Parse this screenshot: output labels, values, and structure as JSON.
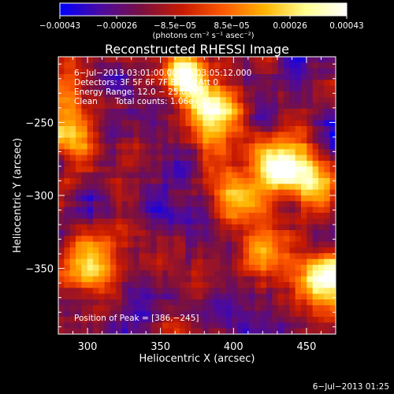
{
  "chart_data": {
    "type": "heatmap",
    "title": "Reconstructed RHESSI Image",
    "xlabel": "Heliocentric X (arcsec)",
    "ylabel": "Heliocentric Y (arcsec)",
    "xlim": [
      280,
      470
    ],
    "ylim": [
      -395,
      -205
    ],
    "x_ticks": [
      300,
      350,
      400,
      450
    ],
    "x_tick_labels": [
      "300",
      "350",
      "400",
      "450"
    ],
    "y_ticks": [
      -250,
      -300,
      -350
    ],
    "y_tick_labels": [
      "−250",
      "−300",
      "−350"
    ],
    "grid": false,
    "colorbar": {
      "min": -0.00043,
      "max": 0.00043,
      "tick_values": [
        -0.00043,
        -0.00026,
        -8.5e-05,
        8.5e-05,
        0.00026,
        0.00043
      ],
      "tick_labels": [
        "−0.00043",
        "−0.00026",
        "−8.5e−05",
        "8.5e−05",
        "0.00026",
        "0.00043"
      ],
      "unit_label": "(photons cm⁻² s⁻¹ asec⁻²)",
      "colors": [
        "#0000ff",
        "#4b0aa0",
        "#7a1040",
        "#c81a00",
        "#ff5a00",
        "#ffb400",
        "#ffff90",
        "#ffffff"
      ]
    },
    "annotations": {
      "time_range": "6−Jul−2013 03:01:00.000 to 03:05:12.000",
      "detectors": "Detectors: 3F 5F 6F 7F 8F 9F, Att 0",
      "energy_range": "Energy Range: 12.0 − 25.0 keV",
      "method": "Clean",
      "total_counts": "Total counts: 1.06e+04",
      "peak_position": "Position of Peak = [386,−245]"
    },
    "sources": [
      {
        "x": 386,
        "y": -245,
        "value": 0.00043
      },
      {
        "x": 368,
        "y": -218,
        "value": 0.00033
      },
      {
        "x": 430,
        "y": -282,
        "value": 0.0004
      },
      {
        "x": 455,
        "y": -290,
        "value": 0.0003
      },
      {
        "x": 400,
        "y": -300,
        "value": 0.00022
      },
      {
        "x": 462,
        "y": -360,
        "value": 0.0004
      },
      {
        "x": 300,
        "y": -348,
        "value": 0.00024
      },
      {
        "x": 293,
        "y": -262,
        "value": 0.00014
      },
      {
        "x": 288,
        "y": -228,
        "value": 0.0001
      },
      {
        "x": 420,
        "y": -340,
        "value": 0.00016
      }
    ]
  },
  "footer": {
    "timestamp": "6−Jul−2013 01:25"
  }
}
